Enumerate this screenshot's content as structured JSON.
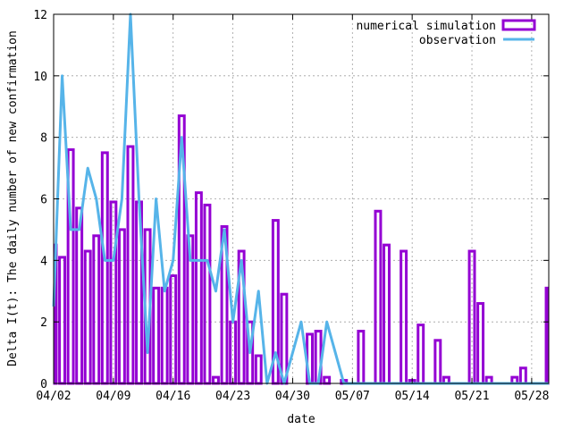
{
  "chart_data": {
    "type": "bar",
    "xlabel": "date",
    "ylabel": "Delta I(t): The daily number of new confirmation",
    "ylim": [
      0,
      12
    ],
    "yticks": [
      0,
      2,
      4,
      6,
      8,
      10,
      12
    ],
    "xlim_days": [
      0,
      58
    ],
    "xticks": [
      {
        "day": 0,
        "label": "04/02"
      },
      {
        "day": 7,
        "label": "04/09"
      },
      {
        "day": 14,
        "label": "04/16"
      },
      {
        "day": 21,
        "label": "04/23"
      },
      {
        "day": 28,
        "label": "04/30"
      },
      {
        "day": 35,
        "label": "05/07"
      },
      {
        "day": 42,
        "label": "05/14"
      },
      {
        "day": 49,
        "label": "05/21"
      },
      {
        "day": 56,
        "label": "05/28"
      }
    ],
    "grid": true,
    "legend_position": "top-right",
    "series": [
      {
        "name": "numerical simulation",
        "kind": "bars",
        "color": "#9400d3",
        "values": [
          4.5,
          4.1,
          7.6,
          5.7,
          4.3,
          4.8,
          7.5,
          5.9,
          5.0,
          7.7,
          5.9,
          5.0,
          3.1,
          3.1,
          3.5,
          8.7,
          4.8,
          6.2,
          5.8,
          0.2,
          5.1,
          2.0,
          4.3,
          2.0,
          0.9,
          0.0,
          5.3,
          2.9,
          0.0,
          0.0,
          1.6,
          1.7,
          0.2,
          0.0,
          0.1,
          0.0,
          1.7,
          0.0,
          5.6,
          4.5,
          0.0,
          4.3,
          0.1,
          1.9,
          0.0,
          1.4,
          0.2,
          0.0,
          0.0,
          4.3,
          2.6,
          0.2,
          0.0,
          0.0,
          0.2,
          0.5,
          0.0,
          0.0,
          3.1
        ]
      },
      {
        "name": "observation",
        "kind": "line",
        "color": "#56b4e9",
        "values": [
          2.5,
          10,
          5,
          5,
          7,
          6,
          4,
          4,
          6,
          12,
          6,
          1,
          6,
          3,
          4,
          8,
          4,
          4,
          4,
          3,
          5,
          2,
          4,
          1,
          3,
          0,
          1,
          0,
          1,
          2,
          0,
          0,
          2,
          1,
          0,
          0,
          0,
          0,
          0,
          0,
          0,
          0,
          0,
          0,
          0,
          0,
          0,
          0,
          0,
          0,
          0,
          0,
          0,
          0,
          0,
          0,
          0,
          0,
          0
        ]
      }
    ]
  }
}
